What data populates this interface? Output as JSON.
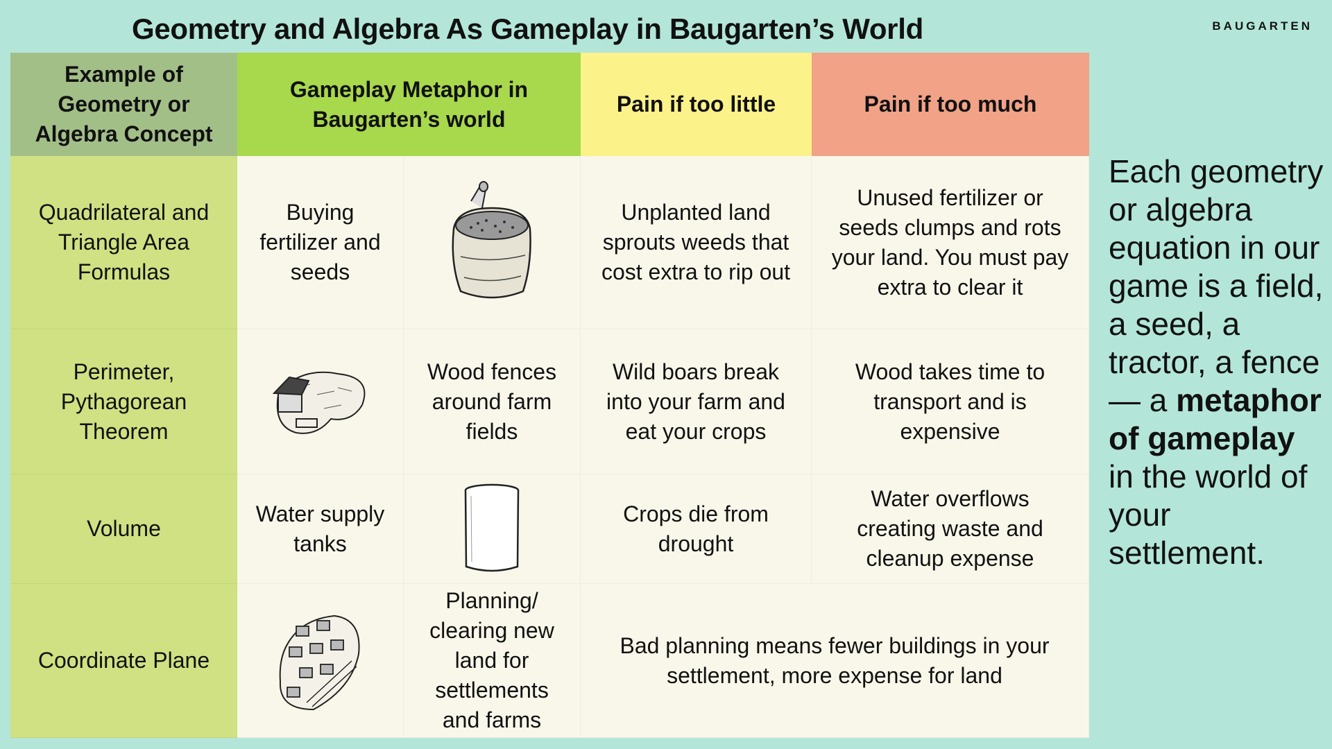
{
  "title": "Geometry and Algebra As Gameplay in Baugarten’s World",
  "logo": "BAUGARTEN",
  "headers": {
    "concept": "Example of\nGeometry or\nAlgebra Concept",
    "metaphor": "Gameplay Metaphor in\nBaugarten’s world",
    "too_little": "Pain if too little",
    "too_much": "Pain if too much"
  },
  "rows": [
    {
      "concept": "Quadrilateral and\nTriangle Area\nFormulas",
      "metaphor": "Buying\nfertilizer and\nseeds",
      "image": "seed-bag-icon",
      "too_little": "Unplanted land\nsprouts weeds that\ncost extra to rip out",
      "too_much": "Unused fertilizer or\nseeds clumps and rots\nyour land. You must pay\nextra to clear it"
    },
    {
      "concept": "Perimeter,\nPythagorean\nTheorem",
      "metaphor": "Wood fences\naround farm\nfields",
      "image": "fenced-farm-icon",
      "too_little": "Wild boars break\ninto your farm and\neat your crops",
      "too_much": "Wood takes time to\ntransport and is\nexpensive"
    },
    {
      "concept": "Volume",
      "metaphor": "Water supply\ntanks",
      "image": "water-tank-icon",
      "too_little": "Crops die from\ndrought",
      "too_much": "Water overflows\ncreating waste and\ncleanup expense"
    },
    {
      "concept": "Coordinate Plane",
      "metaphor": "Planning/\nclearing new\nland for\nsettlements\nand farms",
      "image": "settlement-map-icon",
      "pain_combined": "Bad planning means fewer buildings in your\nsettlement, more expense for land"
    }
  ],
  "sidebar": {
    "text_before": "Each geometry or algebra equation in our game is a field, a seed, a tractor, a fence — a ",
    "text_bold": "metaphor of gameplay",
    "text_after": " in the world of your settlement."
  }
}
